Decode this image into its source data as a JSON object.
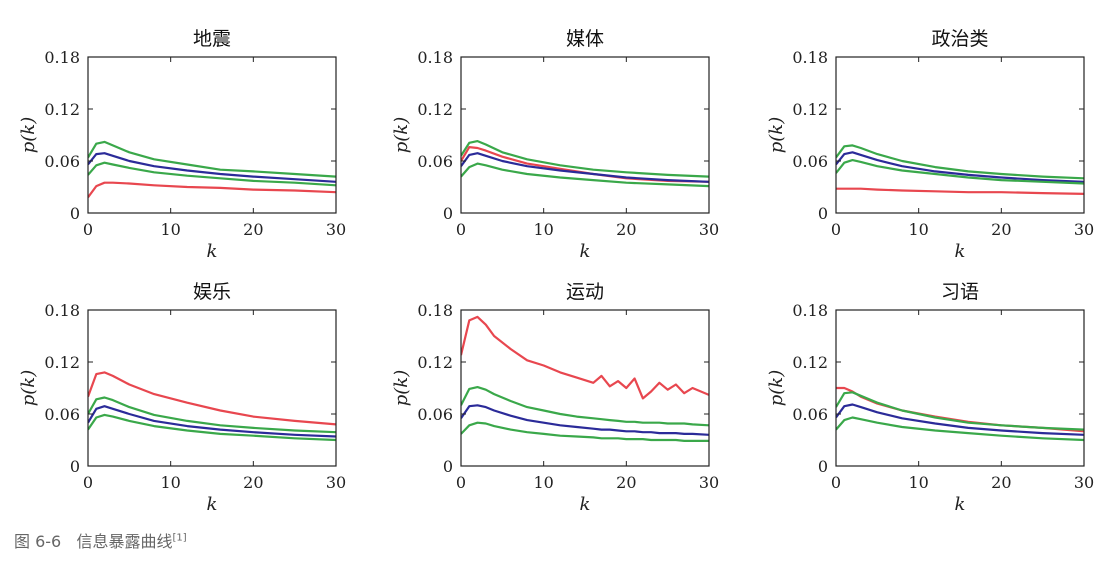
{
  "figure": {
    "caption_number": "图 6-6",
    "caption_text": "信息暴露曲线",
    "caption_ref": "[1]"
  },
  "colors": {
    "green": "#3aa84a",
    "blue": "#2b2b99",
    "red": "#e8474f",
    "axis": "#222222"
  },
  "chart_data": [
    {
      "type": "line",
      "title": "地震",
      "xlabel": "k",
      "ylabel": "p(k)",
      "xlim": [
        0,
        30
      ],
      "ylim": [
        0,
        0.18
      ],
      "xticks": [
        "0",
        "10",
        "20",
        "30"
      ],
      "yticks": [
        "0",
        "0.06",
        "0.12",
        "0.18"
      ],
      "x": [
        0,
        1,
        2,
        3,
        5,
        8,
        12,
        16,
        20,
        25,
        30
      ],
      "series": [
        {
          "name": "green_upper",
          "color": "green",
          "values": [
            0.064,
            0.08,
            0.082,
            0.078,
            0.07,
            0.062,
            0.056,
            0.05,
            0.048,
            0.045,
            0.042
          ]
        },
        {
          "name": "blue",
          "color": "blue",
          "values": [
            0.056,
            0.068,
            0.069,
            0.066,
            0.06,
            0.054,
            0.049,
            0.045,
            0.042,
            0.039,
            0.036
          ]
        },
        {
          "name": "green_lower",
          "color": "green",
          "values": [
            0.044,
            0.055,
            0.058,
            0.056,
            0.052,
            0.047,
            0.043,
            0.04,
            0.037,
            0.035,
            0.032
          ]
        },
        {
          "name": "red",
          "color": "red",
          "values": [
            0.018,
            0.031,
            0.035,
            0.035,
            0.034,
            0.032,
            0.03,
            0.029,
            0.027,
            0.026,
            0.024
          ]
        }
      ]
    },
    {
      "type": "line",
      "title": "媒体",
      "xlabel": "k",
      "ylabel": "p(k)",
      "xlim": [
        0,
        30
      ],
      "ylim": [
        0,
        0.18
      ],
      "xticks": [
        "0",
        "10",
        "20",
        "30"
      ],
      "yticks": [
        "0",
        "0.06",
        "0.12",
        "0.18"
      ],
      "x": [
        0,
        1,
        2,
        3,
        5,
        8,
        12,
        16,
        20,
        25,
        30
      ],
      "series": [
        {
          "name": "green_upper",
          "color": "green",
          "values": [
            0.066,
            0.081,
            0.083,
            0.079,
            0.07,
            0.062,
            0.055,
            0.05,
            0.047,
            0.044,
            0.042
          ]
        },
        {
          "name": "red",
          "color": "red",
          "values": [
            0.06,
            0.076,
            0.075,
            0.072,
            0.065,
            0.057,
            0.051,
            0.045,
            0.04,
            0.037,
            0.036
          ]
        },
        {
          "name": "blue",
          "color": "blue",
          "values": [
            0.054,
            0.067,
            0.069,
            0.066,
            0.06,
            0.054,
            0.049,
            0.045,
            0.041,
            0.038,
            0.036
          ]
        },
        {
          "name": "green_lower",
          "color": "green",
          "values": [
            0.042,
            0.053,
            0.057,
            0.055,
            0.05,
            0.045,
            0.041,
            0.038,
            0.035,
            0.033,
            0.031
          ]
        }
      ]
    },
    {
      "type": "line",
      "title": "政治类",
      "xlabel": "k",
      "ylabel": "p(k)",
      "xlim": [
        0,
        30
      ],
      "ylim": [
        0,
        0.18
      ],
      "xticks": [
        "0",
        "10",
        "20",
        "30"
      ],
      "yticks": [
        "0",
        "0.06",
        "0.12",
        "0.18"
      ],
      "x": [
        0,
        1,
        2,
        3,
        5,
        8,
        12,
        16,
        20,
        25,
        30
      ],
      "series": [
        {
          "name": "green_upper",
          "color": "green",
          "values": [
            0.064,
            0.077,
            0.078,
            0.075,
            0.068,
            0.06,
            0.053,
            0.048,
            0.045,
            0.042,
            0.04
          ]
        },
        {
          "name": "blue",
          "color": "blue",
          "values": [
            0.056,
            0.068,
            0.07,
            0.067,
            0.061,
            0.054,
            0.048,
            0.044,
            0.041,
            0.038,
            0.036
          ]
        },
        {
          "name": "green_lower",
          "color": "green",
          "values": [
            0.046,
            0.058,
            0.061,
            0.059,
            0.054,
            0.049,
            0.045,
            0.041,
            0.038,
            0.036,
            0.034
          ]
        },
        {
          "name": "red",
          "color": "red",
          "values": [
            0.028,
            0.028,
            0.028,
            0.028,
            0.027,
            0.026,
            0.025,
            0.024,
            0.024,
            0.023,
            0.022
          ]
        }
      ]
    },
    {
      "type": "line",
      "title": "娱乐",
      "xlabel": "k",
      "ylabel": "p(k)",
      "xlim": [
        0,
        30
      ],
      "ylim": [
        0,
        0.18
      ],
      "xticks": [
        "0",
        "10",
        "20",
        "30"
      ],
      "yticks": [
        "0",
        "0.06",
        "0.12",
        "0.18"
      ],
      "x": [
        0,
        1,
        2,
        3,
        5,
        8,
        12,
        16,
        20,
        25,
        30
      ],
      "series": [
        {
          "name": "red",
          "color": "red",
          "values": [
            0.08,
            0.106,
            0.108,
            0.104,
            0.094,
            0.083,
            0.073,
            0.064,
            0.057,
            0.052,
            0.048
          ]
        },
        {
          "name": "green_upper",
          "color": "green",
          "values": [
            0.06,
            0.077,
            0.079,
            0.076,
            0.068,
            0.059,
            0.052,
            0.047,
            0.044,
            0.041,
            0.039
          ]
        },
        {
          "name": "blue",
          "color": "blue",
          "values": [
            0.05,
            0.066,
            0.069,
            0.066,
            0.06,
            0.052,
            0.046,
            0.042,
            0.039,
            0.036,
            0.034
          ]
        },
        {
          "name": "green_lower",
          "color": "green",
          "values": [
            0.042,
            0.056,
            0.059,
            0.057,
            0.052,
            0.046,
            0.041,
            0.037,
            0.035,
            0.032,
            0.03
          ]
        }
      ]
    },
    {
      "type": "line",
      "title": "运动",
      "xlabel": "k",
      "ylabel": "p(k)",
      "xlim": [
        0,
        30
      ],
      "ylim": [
        0,
        0.18
      ],
      "xticks": [
        "0",
        "10",
        "20",
        "30"
      ],
      "yticks": [
        "0",
        "0.06",
        "0.12",
        "0.18"
      ],
      "x": [
        0,
        1,
        2,
        3,
        4,
        6,
        8,
        10,
        12,
        14,
        16,
        17,
        18,
        19,
        20,
        21,
        22,
        23,
        24,
        25,
        26,
        27,
        28,
        30
      ],
      "series": [
        {
          "name": "red",
          "color": "red",
          "values": [
            0.128,
            0.168,
            0.172,
            0.163,
            0.15,
            0.135,
            0.122,
            0.116,
            0.108,
            0.102,
            0.096,
            0.104,
            0.092,
            0.098,
            0.09,
            0.101,
            0.078,
            0.086,
            0.096,
            0.088,
            0.094,
            0.084,
            0.09,
            0.082
          ]
        },
        {
          "name": "green_upper",
          "color": "green",
          "values": [
            0.07,
            0.089,
            0.091,
            0.088,
            0.083,
            0.075,
            0.068,
            0.064,
            0.06,
            0.057,
            0.055,
            0.054,
            0.053,
            0.052,
            0.051,
            0.051,
            0.05,
            0.05,
            0.05,
            0.049,
            0.049,
            0.049,
            0.048,
            0.047
          ]
        },
        {
          "name": "blue",
          "color": "blue",
          "values": [
            0.055,
            0.069,
            0.07,
            0.068,
            0.064,
            0.058,
            0.053,
            0.05,
            0.047,
            0.045,
            0.043,
            0.042,
            0.042,
            0.041,
            0.04,
            0.04,
            0.039,
            0.039,
            0.038,
            0.038,
            0.038,
            0.037,
            0.037,
            0.036
          ]
        },
        {
          "name": "green_lower",
          "color": "green",
          "values": [
            0.037,
            0.047,
            0.05,
            0.049,
            0.046,
            0.042,
            0.039,
            0.037,
            0.035,
            0.034,
            0.033,
            0.032,
            0.032,
            0.032,
            0.031,
            0.031,
            0.031,
            0.03,
            0.03,
            0.03,
            0.03,
            0.029,
            0.029,
            0.029
          ]
        }
      ]
    },
    {
      "type": "line",
      "title": "习语",
      "xlabel": "k",
      "ylabel": "p(k)",
      "xlim": [
        0,
        30
      ],
      "ylim": [
        0,
        0.18
      ],
      "xticks": [
        "0",
        "10",
        "20",
        "30"
      ],
      "yticks": [
        "0",
        "0.06",
        "0.12",
        "0.18"
      ],
      "x": [
        0,
        1,
        2,
        3,
        5,
        8,
        12,
        16,
        20,
        25,
        30
      ],
      "series": [
        {
          "name": "red",
          "color": "red",
          "values": [
            0.09,
            0.09,
            0.086,
            0.08,
            0.072,
            0.064,
            0.057,
            0.051,
            0.047,
            0.044,
            0.04
          ]
        },
        {
          "name": "green_upper",
          "color": "green",
          "values": [
            0.068,
            0.084,
            0.085,
            0.081,
            0.073,
            0.064,
            0.056,
            0.05,
            0.047,
            0.044,
            0.042
          ]
        },
        {
          "name": "blue",
          "color": "blue",
          "values": [
            0.056,
            0.069,
            0.071,
            0.068,
            0.062,
            0.055,
            0.049,
            0.044,
            0.041,
            0.038,
            0.036
          ]
        },
        {
          "name": "green_lower",
          "color": "green",
          "values": [
            0.042,
            0.053,
            0.056,
            0.054,
            0.05,
            0.045,
            0.041,
            0.038,
            0.035,
            0.032,
            0.03
          ]
        }
      ]
    }
  ]
}
